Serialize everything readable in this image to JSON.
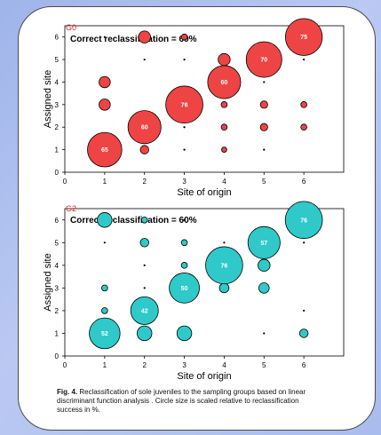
{
  "colors": {
    "panel1_fill": "#ef4444",
    "panel2_fill": "#2fc9c9",
    "tag_color": "#e02020"
  },
  "caption": {
    "fig_label": "Fig. 4.",
    "text": " Reclassification of sole juveniles to the sampling groups based on linear discriminant function analysis . Circle size is scaled relative to reclassification success in %."
  },
  "chart_data": [
    {
      "type": "scatter",
      "tag": "G0",
      "title": "Correct reclassification = 69%",
      "xlabel": "Site of origin",
      "ylabel": "Assigned site",
      "xlim": [
        0,
        7
      ],
      "ylim": [
        0,
        6.5
      ],
      "xticks": [
        "0",
        "1",
        "2",
        "3",
        "4",
        "5",
        "6"
      ],
      "yticks": [
        "0",
        "1",
        "2",
        "3",
        "4",
        "5",
        "6"
      ],
      "grid": false,
      "points": [
        {
          "x": 1,
          "y": 1,
          "size": 65,
          "label": "65"
        },
        {
          "x": 1,
          "y": 3,
          "size": 7
        },
        {
          "x": 1,
          "y": 4,
          "size": 7
        },
        {
          "x": 1,
          "y": 6,
          "size": 0.5
        },
        {
          "x": 2,
          "y": 1,
          "size": 4
        },
        {
          "x": 2,
          "y": 2,
          "size": 60,
          "label": "60"
        },
        {
          "x": 2,
          "y": 5,
          "size": 0.5
        },
        {
          "x": 2,
          "y": 6,
          "size": 8
        },
        {
          "x": 3,
          "y": 1,
          "size": 0.5
        },
        {
          "x": 3,
          "y": 2,
          "size": 0.5
        },
        {
          "x": 3,
          "y": 3,
          "size": 76,
          "label": "76"
        },
        {
          "x": 3,
          "y": 5,
          "size": 0.5
        },
        {
          "x": 3,
          "y": 6,
          "size": 2
        },
        {
          "x": 4,
          "y": 1,
          "size": 1.5
        },
        {
          "x": 4,
          "y": 2,
          "size": 2
        },
        {
          "x": 4,
          "y": 3,
          "size": 2
        },
        {
          "x": 4,
          "y": 4,
          "size": 60,
          "label": "60"
        },
        {
          "x": 4,
          "y": 5,
          "size": 8
        },
        {
          "x": 5,
          "y": 1,
          "size": 0.5
        },
        {
          "x": 5,
          "y": 2,
          "size": 3
        },
        {
          "x": 5,
          "y": 3,
          "size": 3
        },
        {
          "x": 5,
          "y": 4,
          "size": 0.5
        },
        {
          "x": 5,
          "y": 5,
          "size": 70,
          "label": "70"
        },
        {
          "x": 6,
          "y": 2,
          "size": 2
        },
        {
          "x": 6,
          "y": 3,
          "size": 2
        },
        {
          "x": 6,
          "y": 5,
          "size": 0.5
        },
        {
          "x": 6,
          "y": 6,
          "size": 75,
          "label": "75"
        }
      ]
    },
    {
      "type": "scatter",
      "tag": "G2",
      "title": "Correct reclassification = 60%",
      "xlabel": "Site of origin",
      "ylabel": "Assigned site",
      "xlim": [
        0,
        7
      ],
      "ylim": [
        0,
        6.5
      ],
      "xticks": [
        "0",
        "1",
        "2",
        "3",
        "4",
        "5",
        "6"
      ],
      "yticks": [
        "0",
        "1",
        "2",
        "3",
        "4",
        "5",
        "6"
      ],
      "grid": false,
      "points": [
        {
          "x": 1,
          "y": 1,
          "size": 52,
          "label": "52"
        },
        {
          "x": 1,
          "y": 2,
          "size": 2
        },
        {
          "x": 1,
          "y": 3,
          "size": 2
        },
        {
          "x": 1,
          "y": 5,
          "size": 0.3
        },
        {
          "x": 1,
          "y": 6,
          "size": 12
        },
        {
          "x": 2,
          "y": 1,
          "size": 12
        },
        {
          "x": 2,
          "y": 2,
          "size": 42,
          "label": "42"
        },
        {
          "x": 2,
          "y": 3,
          "size": 0.3
        },
        {
          "x": 2,
          "y": 4,
          "size": 0.3
        },
        {
          "x": 2,
          "y": 5,
          "size": 4
        },
        {
          "x": 2,
          "y": 6,
          "size": 2
        },
        {
          "x": 3,
          "y": 1,
          "size": 12
        },
        {
          "x": 3,
          "y": 3,
          "size": 50,
          "label": "50"
        },
        {
          "x": 3,
          "y": 4,
          "size": 2
        },
        {
          "x": 3,
          "y": 5,
          "size": 2
        },
        {
          "x": 3,
          "y": 6,
          "size": 0.5
        },
        {
          "x": 4,
          "y": 3,
          "size": 5
        },
        {
          "x": 4,
          "y": 4,
          "size": 76,
          "label": "76"
        },
        {
          "x": 4,
          "y": 5,
          "size": 1
        },
        {
          "x": 5,
          "y": 1,
          "size": 0.5
        },
        {
          "x": 5,
          "y": 3,
          "size": 6
        },
        {
          "x": 5,
          "y": 4,
          "size": 8
        },
        {
          "x": 5,
          "y": 5,
          "size": 57,
          "label": "57"
        },
        {
          "x": 6,
          "y": 1,
          "size": 4
        },
        {
          "x": 6,
          "y": 2,
          "size": 1
        },
        {
          "x": 6,
          "y": 5,
          "size": 0.5
        },
        {
          "x": 6,
          "y": 6,
          "size": 76,
          "label": "76"
        }
      ]
    }
  ]
}
